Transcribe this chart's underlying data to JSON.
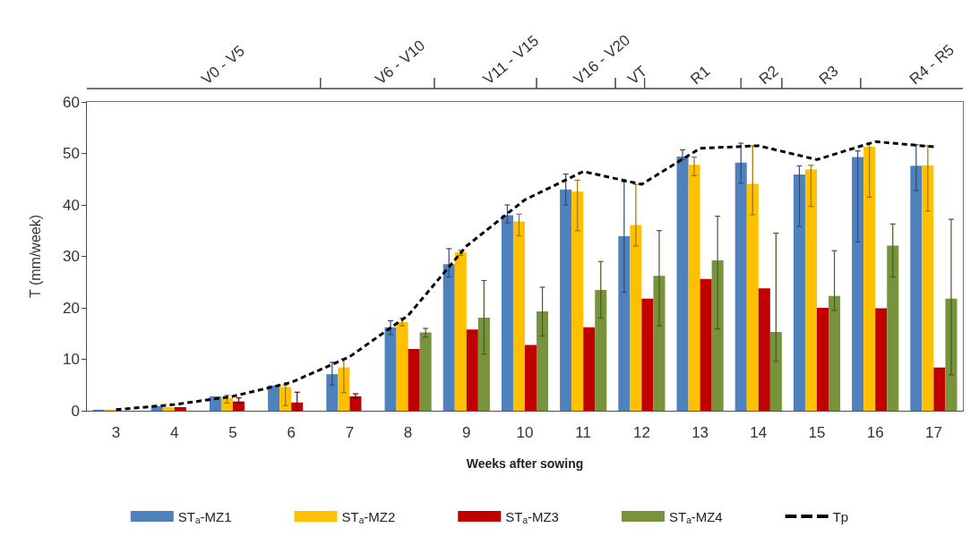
{
  "chart_data": {
    "type": "bar",
    "xlabel": "Weeks after sowing",
    "ylabel": "T (mm/week)",
    "x": [
      3,
      4,
      5,
      6,
      7,
      8,
      9,
      10,
      11,
      12,
      13,
      14,
      15,
      16,
      17
    ],
    "xlim": [
      2.5,
      17.5
    ],
    "xticks": [
      3,
      4,
      5,
      6,
      7,
      8,
      9,
      10,
      11,
      12,
      13,
      14,
      15,
      16,
      17
    ],
    "ylim": [
      0,
      60
    ],
    "yticks": [
      0,
      10,
      20,
      30,
      40,
      50,
      60
    ],
    "grid": false,
    "legend": "bottom",
    "series": [
      {
        "name": "ST$_{a}$-MZ1",
        "color": "#4f81bd",
        "values": [
          0.2,
          0.9,
          2.8,
          4.9,
          7.1,
          16.2,
          28.5,
          38,
          43,
          33.9,
          49.4,
          48.2,
          45.9,
          49.3,
          47.6
        ],
        "errors": [
          null,
          null,
          null,
          null,
          [
            5,
            9.4
          ],
          [
            14.8,
            17.5
          ],
          [
            26,
            31.5
          ],
          [
            36.5,
            40
          ],
          [
            40,
            46
          ],
          [
            23,
            44.5
          ],
          [
            48.8,
            50.7
          ],
          [
            44.2,
            52
          ],
          [
            35.8,
            47.6
          ],
          [
            32.8,
            50.5
          ],
          [
            42.8,
            51.7
          ]
        ]
      },
      {
        "name": "ST$_{a}$-MZ2",
        "color": "#ffc000",
        "values": [
          0.2,
          0.7,
          2.5,
          4.6,
          8.4,
          17.2,
          30.8,
          36.8,
          42.6,
          36.1,
          47.8,
          44.1,
          46.9,
          51.3,
          47.7
        ],
        "errors": [
          null,
          null,
          [
            1.5,
            3
          ],
          [
            1,
            5
          ],
          [
            3.5,
            10
          ],
          [
            16.5,
            18
          ],
          [
            30.2,
            31.2
          ],
          [
            34,
            38.2
          ],
          [
            35,
            44.8
          ],
          [
            32,
            44
          ],
          [
            45.7,
            49.3
          ],
          [
            38.1,
            51.5
          ],
          [
            39.7,
            47.7
          ],
          [
            41.5,
            52
          ],
          [
            38.8,
            51.5
          ]
        ]
      },
      {
        "name": "ST$_{a}$-MZ3",
        "color": "#c00000",
        "values": [
          0,
          0.7,
          1.8,
          1.6,
          2.8,
          12,
          15.8,
          12.8,
          16.2,
          21.8,
          25.6,
          23.8,
          20,
          19.9,
          8.4
        ],
        "errors": [
          null,
          null,
          [
            1.5,
            2.5
          ],
          [
            0,
            3.6
          ],
          [
            2.5,
            3.3
          ],
          null,
          null,
          null,
          null,
          null,
          null,
          null,
          null,
          null,
          null
        ]
      },
      {
        "name": "ST$_{a}$-MZ4",
        "color": "#77933c",
        "values": [
          0,
          0,
          0,
          0,
          0,
          15.2,
          18.1,
          19.3,
          23.5,
          26.2,
          29.2,
          15.3,
          22.3,
          32.1,
          21.8
        ],
        "errors": [
          null,
          null,
          null,
          null,
          null,
          [
            14.3,
            16
          ],
          [
            11,
            25.3
          ],
          [
            14.5,
            24
          ],
          [
            18,
            29
          ],
          [
            16.5,
            35
          ],
          [
            15.9,
            37.8
          ],
          [
            9.6,
            34.5
          ],
          [
            19.5,
            31.1
          ],
          [
            26,
            36.3
          ],
          [
            7,
            37.2
          ]
        ]
      },
      {
        "name": "Tp",
        "type": "line",
        "color": "#000000",
        "line_style": "dashed",
        "marker": "none",
        "values": [
          0.2,
          1.2,
          2.8,
          5.5,
          10.5,
          18.5,
          32,
          41,
          46.5,
          44,
          51,
          51.5,
          48.8,
          52.3,
          51.3
        ]
      }
    ],
    "bands": [
      {
        "axis": "x",
        "from": 2.5,
        "to": 6.5,
        "label": "V0 - V5",
        "color": "#ffffff"
      },
      {
        "axis": "x",
        "from": 6.5,
        "to": 8.45,
        "label": "V6 - V10",
        "color": "#ffffff"
      },
      {
        "axis": "x",
        "from": 8.45,
        "to": 10.2,
        "label": "V11 - V15",
        "color": "#ffffff"
      },
      {
        "axis": "x",
        "from": 10.2,
        "to": 11.55,
        "label": "V16 - V20",
        "color": "#ffffff"
      },
      {
        "axis": "x",
        "from": 11.55,
        "to": 12.05,
        "label": "VT",
        "color": "#ffffff"
      },
      {
        "axis": "x",
        "from": 12.05,
        "to": 13.7,
        "label": "R1",
        "color": "#ffffff"
      },
      {
        "axis": "x",
        "from": 13.7,
        "to": 14.4,
        "label": "R2",
        "color": "#ffffff"
      },
      {
        "axis": "x",
        "from": 14.4,
        "to": 15.75,
        "label": "R3",
        "color": "#ffffff"
      },
      {
        "axis": "x",
        "from": 15.75,
        "to": 17.5,
        "label": "R4 - R5",
        "color": "#ffffff"
      }
    ]
  }
}
